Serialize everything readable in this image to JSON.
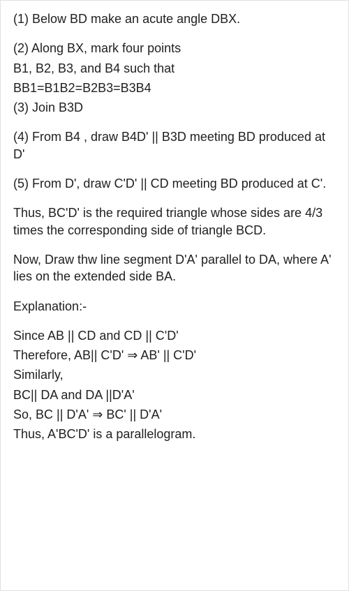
{
  "step1": "(1) Below BD make an acute angle DBX.",
  "step2_a": "(2) Along BX, mark four points",
  "step2_b": "B1, B2, B3, and B4 such that",
  "step2_c": "BB1=B1B2=B2B3=B3B4",
  "step3": "(3) Join B3D",
  "step4": "(4) From B4 , draw B4D' || B3D meeting BD produced at D'",
  "step5": "(5) From D', draw C'D' || CD meeting BD produced at C'.",
  "thus1": "Thus, BC'D' is the required triangle whose sides are 4/3 times the corresponding side of triangle BCD.",
  "now1": "Now, Draw thw line segment D'A' parallel to DA, where A' lies on the extended side BA.",
  "expl": "Explanation:-",
  "e1": "Since AB || CD and CD || C'D'",
  "e2": "Therefore, AB|| C'D'  ⇒ AB' || C'D'",
  "e3": "Similarly,",
  "e4": "BC|| DA and DA ||D'A'",
  "e5": "So, BC || D'A'  ⇒ BC' || D'A'",
  "e6": "Thus, A'BC'D' is a parallelogram."
}
